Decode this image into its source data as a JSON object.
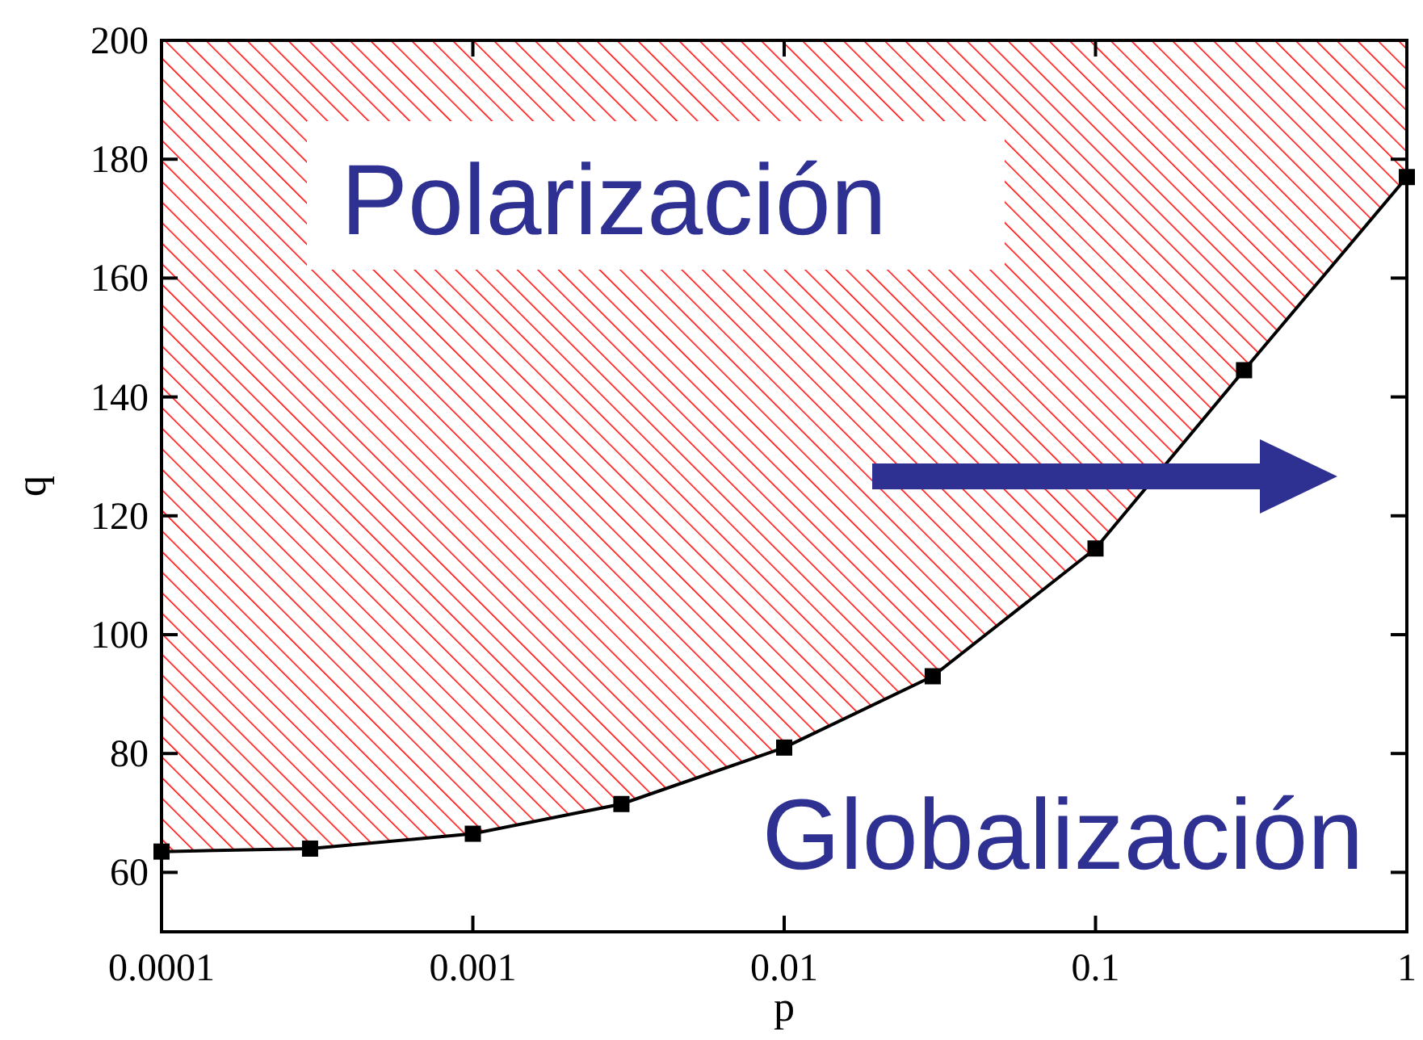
{
  "chart_data": {
    "type": "line",
    "xlabel": "p",
    "ylabel": "q",
    "log": "x",
    "x": [
      0.0001,
      0.0003,
      0.001,
      0.003,
      0.01,
      0.03,
      0.1,
      0.3,
      1
    ],
    "series": [
      {
        "color": "#000000",
        "values": [
          63.5,
          64,
          66.5,
          71.5,
          81,
          93,
          114.5,
          144.5,
          177
        ],
        "lower": [
          63.5,
          64,
          66.5,
          71.5,
          81,
          93,
          114.5,
          144.5,
          177
        ],
        "upper": [
          200,
          200,
          200,
          200,
          200,
          200,
          200,
          200,
          200
        ]
      }
    ],
    "xlim": [
      0.0001,
      1
    ],
    "xticks": [
      0.0001,
      0.001,
      0.01,
      0.1,
      1
    ],
    "ylim": [
      50,
      200
    ],
    "yticks": [
      60,
      80,
      100,
      120,
      140,
      160,
      180,
      200
    ],
    "marker": "square",
    "line_style": "solid",
    "annotations": [
      "Polarización",
      "Globalización"
    ]
  }
}
